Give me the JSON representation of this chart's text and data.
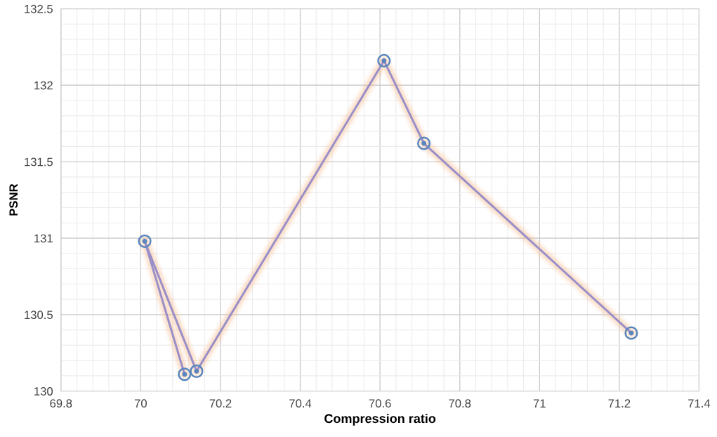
{
  "chart_data": {
    "type": "line",
    "xlabel": "Compression ratio",
    "ylabel": "PSNR",
    "series": [
      {
        "color": "#9b8fc8",
        "x": [
          70.11,
          70.01,
          70.14,
          70.61,
          70.71,
          71.23
        ],
        "values": [
          130.11,
          130.98,
          130.13,
          132.16,
          131.62,
          130.38
        ]
      }
    ],
    "xlim": [
      69.8,
      71.4
    ],
    "xticks": [
      69.8,
      70,
      70.2,
      70.4,
      70.6,
      70.8,
      71,
      71.2,
      71.4
    ],
    "ylim": [
      130,
      132.5
    ],
    "yticks": [
      130,
      130.5,
      131,
      131.5,
      132,
      132.5
    ],
    "grid": true,
    "marker": "circle",
    "line_style": "solid"
  }
}
